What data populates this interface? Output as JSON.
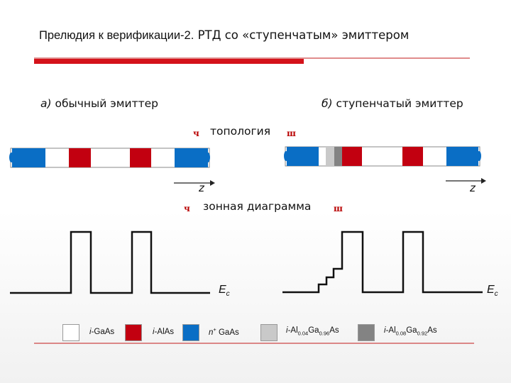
{
  "title": {
    "part1": "Прелюдия к верификации-2.",
    "part2": "РТД со «ступенчатым» эмиттером"
  },
  "labels": {
    "left_letter": "а)",
    "left_text": "обычный эмиттер",
    "right_letter": "б)",
    "right_text": "ступенчатый эмиттер",
    "topology": "топология",
    "band": "зонная диаграмма",
    "z": "z",
    "arrow_left": "ч",
    "arrow_right": "ш"
  },
  "energy": {
    "base": "E",
    "sub": "c"
  },
  "legend": [
    {
      "color": "#ffffff",
      "prefix": "i",
      "text": "-GaAs"
    },
    {
      "color": "#c20010",
      "prefix": "i",
      "text": "-AlAs"
    },
    {
      "color": "#0a6ec5",
      "prefix": "n",
      "sup": "+",
      "text": " GaAs"
    },
    {
      "color": "#c9c9c9",
      "prefix": "i",
      "text": "-Al",
      "sub1": "0.04",
      "mid": "Ga",
      "sub2": "0.96",
      "end": "As"
    },
    {
      "color": "#838383",
      "prefix": "i",
      "text": "-Al",
      "sub1": "0.08",
      "mid": "Ga",
      "sub2": "0.92",
      "end": "As"
    }
  ],
  "colors": {
    "accent_red": "#d4121a",
    "blue": "#0a6ec5",
    "red": "#c20010",
    "light_gray": "#c9c9c9",
    "dark_gray": "#838383"
  }
}
